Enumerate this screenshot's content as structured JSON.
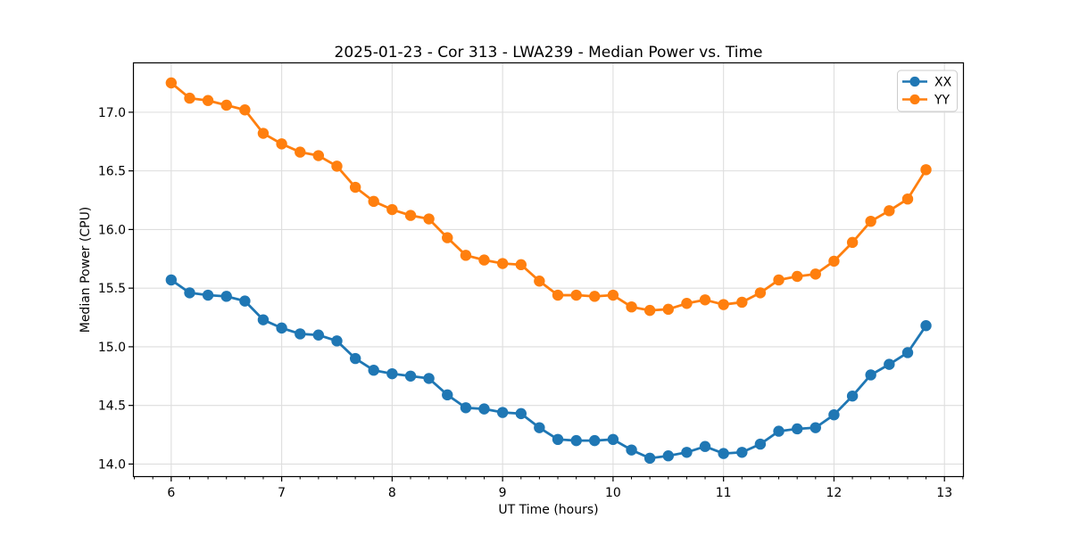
{
  "figure": {
    "background": "#ffffff",
    "spine_color": "#000000",
    "grid_color": "#dedede",
    "tick_color": "#000000"
  },
  "legend": {
    "position": "upper right",
    "items": [
      {
        "label": "XX",
        "color": "#1f77b4"
      },
      {
        "label": "YY",
        "color": "#ff7f0e"
      }
    ]
  },
  "chart_data": {
    "type": "line",
    "title": "2025-01-23 - Cor 313 - LWA239 - Median Power vs. Time",
    "xlabel": "UT Time (hours)",
    "ylabel": "Median Power (CPU)",
    "grid": true,
    "legend_position": "upper right",
    "marker": "o",
    "xlim": [
      5.658,
      13.172
    ],
    "ylim": [
      13.893,
      17.421
    ],
    "x_ticks": [
      6,
      7,
      8,
      9,
      10,
      11,
      12,
      13
    ],
    "x_tick_labels": [
      "6",
      "7",
      "8",
      "9",
      "10",
      "11",
      "12",
      "13"
    ],
    "x_minor_tick_step": 0.166667,
    "y_ticks": [
      14.0,
      14.5,
      15.0,
      15.5,
      16.0,
      16.5,
      17.0
    ],
    "y_tick_labels": [
      "14.0",
      "14.5",
      "15.0",
      "15.5",
      "16.0",
      "16.5",
      "17.0"
    ],
    "x": [
      6.0,
      6.167,
      6.333,
      6.5,
      6.667,
      6.833,
      7.0,
      7.167,
      7.333,
      7.5,
      7.667,
      7.833,
      8.0,
      8.167,
      8.333,
      8.5,
      8.667,
      8.833,
      9.0,
      9.167,
      9.333,
      9.5,
      9.667,
      9.833,
      10.0,
      10.167,
      10.333,
      10.5,
      10.667,
      10.833,
      11.0,
      11.167,
      11.333,
      11.5,
      11.667,
      11.833,
      12.0,
      12.167,
      12.333,
      12.5,
      12.667,
      12.833
    ],
    "series": [
      {
        "name": "XX",
        "color": "#1f77b4",
        "values": [
          15.57,
          15.46,
          15.44,
          15.43,
          15.39,
          15.23,
          15.16,
          15.11,
          15.1,
          15.05,
          14.9,
          14.8,
          14.77,
          14.75,
          14.73,
          14.59,
          14.48,
          14.47,
          14.44,
          14.43,
          14.31,
          14.21,
          14.2,
          14.2,
          14.21,
          14.12,
          14.05,
          14.07,
          14.1,
          14.15,
          14.09,
          14.1,
          14.17,
          14.28,
          14.3,
          14.31,
          14.42,
          14.58,
          14.76,
          14.85,
          14.95,
          15.18
        ]
      },
      {
        "name": "YY",
        "color": "#ff7f0e",
        "values": [
          17.25,
          17.12,
          17.1,
          17.06,
          17.02,
          16.82,
          16.73,
          16.66,
          16.63,
          16.54,
          16.36,
          16.24,
          16.17,
          16.12,
          16.09,
          15.93,
          15.78,
          15.74,
          15.71,
          15.7,
          15.56,
          15.44,
          15.44,
          15.43,
          15.44,
          15.34,
          15.31,
          15.32,
          15.37,
          15.4,
          15.36,
          15.38,
          15.46,
          15.57,
          15.6,
          15.62,
          15.73,
          15.89,
          16.07,
          16.16,
          16.26,
          16.51
        ]
      }
    ]
  }
}
